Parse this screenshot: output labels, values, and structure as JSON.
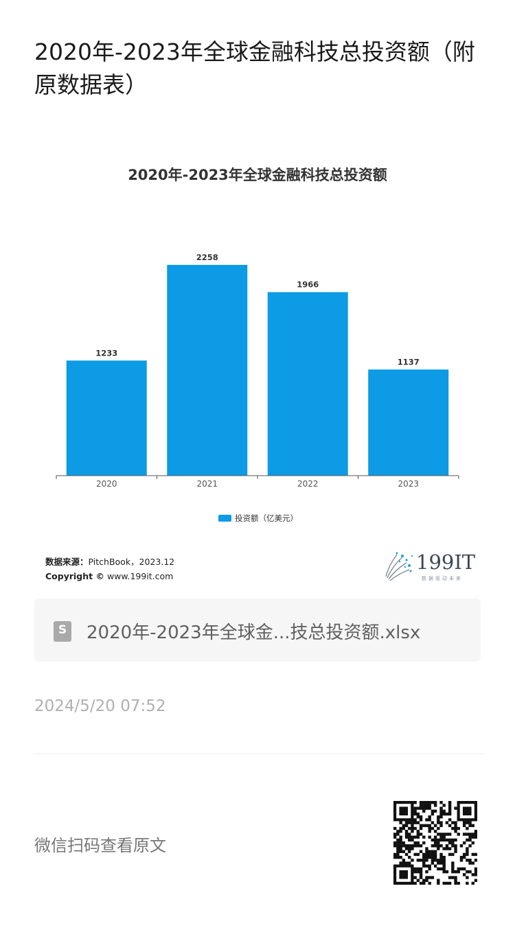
{
  "page": {
    "title": "2020年-2023年全球金融科技总投资额（附原数据表）"
  },
  "chart_data": {
    "type": "bar",
    "title": "2020年-2023年全球金融科技总投资额",
    "categories": [
      "2020",
      "2021",
      "2022",
      "2023"
    ],
    "series": [
      {
        "name": "投资额（亿美元）",
        "values": [
          1233,
          2258,
          1966,
          1137
        ]
      }
    ],
    "ylim": [
      0,
      2500
    ],
    "grid": false,
    "legend": "bottom",
    "bar_color": "#0c9be4"
  },
  "source": {
    "label": "数据来源：",
    "value": "PitchBook，2023.12",
    "copyright_label": "Copyright ©",
    "copyright_value": " www.199it.com"
  },
  "logo": {
    "text": "199IT",
    "sub": "数据驱动未来"
  },
  "attachment": {
    "file_name": "2020年-2023年全球金...技总投资额.xlsx",
    "icon_letter": "S"
  },
  "timestamp": "2024/5/20 07:52",
  "qr_hint": "微信扫码查看原文"
}
